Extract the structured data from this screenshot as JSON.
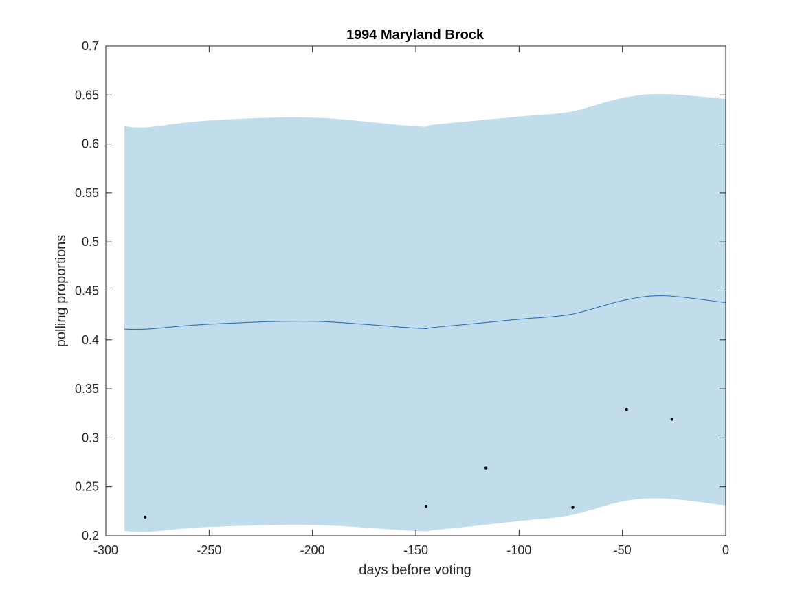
{
  "chart_data": {
    "type": "area",
    "title": "1994 Maryland Brock",
    "xlabel": "days before voting",
    "ylabel": "polling proportions",
    "xlim": [
      -300,
      0
    ],
    "ylim": [
      0.2,
      0.7
    ],
    "x_ticks": [
      -300,
      -250,
      -200,
      -150,
      -100,
      -50,
      0
    ],
    "y_ticks": [
      0.2,
      0.25,
      0.3,
      0.35,
      0.4,
      0.45,
      0.5,
      0.55,
      0.6,
      0.65,
      0.7
    ],
    "x_tick_labels": [
      "-300",
      "-250",
      "-200",
      "-150",
      "-100",
      "-50",
      "0"
    ],
    "y_tick_labels": [
      "0.2",
      "0.25",
      "0.3",
      "0.35",
      "0.4",
      "0.45",
      "0.5",
      "0.55",
      "0.6",
      "0.65",
      "0.7"
    ],
    "grid": false,
    "legend": "none",
    "band": {
      "color": "#c1dcea",
      "x": [
        -291,
        -280,
        -250,
        -200,
        -150,
        -140,
        -100,
        -75,
        -50,
        -30,
        0
      ],
      "lower": [
        0.205,
        0.204,
        0.209,
        0.211,
        0.205,
        0.206,
        0.215,
        0.221,
        0.235,
        0.238,
        0.231
      ],
      "upper": [
        0.618,
        0.617,
        0.624,
        0.627,
        0.618,
        0.62,
        0.628,
        0.633,
        0.647,
        0.651,
        0.646
      ]
    },
    "series": [
      {
        "type": "line",
        "color": "#3072b8",
        "x": [
          -291,
          -280,
          -250,
          -200,
          -150,
          -140,
          -100,
          -75,
          -50,
          -30,
          0
        ],
        "values": [
          0.411,
          0.411,
          0.416,
          0.419,
          0.412,
          0.413,
          0.421,
          0.426,
          0.44,
          0.445,
          0.438
        ]
      },
      {
        "type": "scatter",
        "color": "#000000",
        "x": [
          -281,
          -145,
          -116,
          -74,
          -48,
          -26
        ],
        "values": [
          0.219,
          0.23,
          0.269,
          0.229,
          0.329,
          0.319
        ]
      }
    ]
  }
}
